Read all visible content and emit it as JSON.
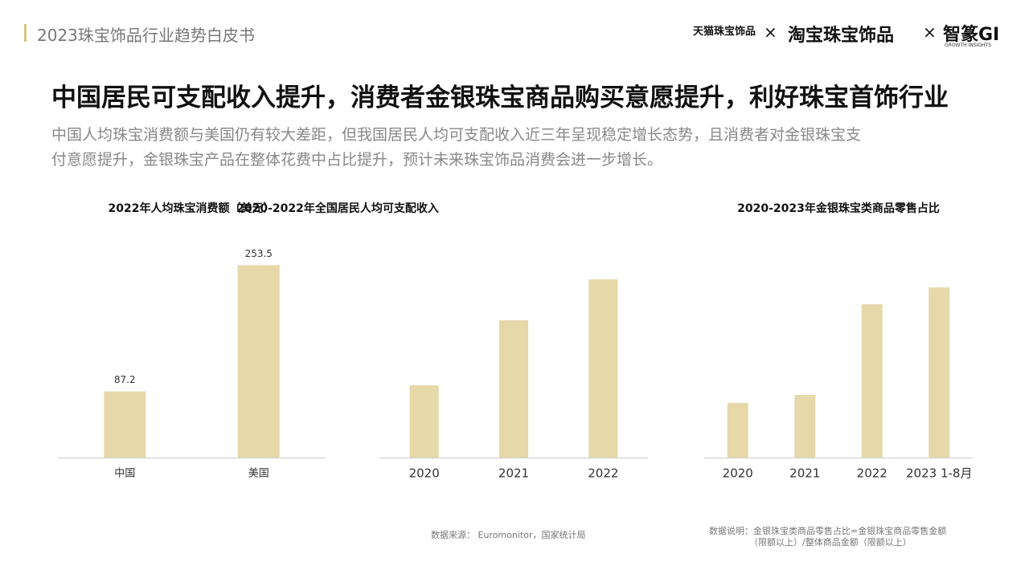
{
  "header": {
    "report": "2023珠宝饰品行业趋势白皮书",
    "logos": [
      "天猫珠宝饰品",
      "×",
      "淘宝珠宝饰品",
      "×",
      "智篆GI"
    ],
    "logo_sub": "GROWTH  INSIGHTS"
  },
  "title": "中国居民可支配收入提升，消费者金银珠宝商品购买意愿提升，利好珠宝首饰行业",
  "subtitle_lines": [
    "中国人均珠宝消费额与美国仍有较大差距，但我国居民人均可支配收入近三年呈现稳定增长态势，且消费者对金银珠宝支",
    "付意愿提升，金银珠宝产品在整体花费中占比提升，预计未来珠宝饰品消费会进一步增长。"
  ],
  "chart_data": [
    {
      "type": "bar",
      "title": "2022年人均珠宝消费额（美元）",
      "categories": [
        "中国",
        "美国"
      ],
      "values": [
        87.2,
        253.5
      ],
      "color": "#e6d8a8",
      "ylim": [
        0,
        275
      ],
      "show_values": true
    },
    {
      "type": "bar",
      "title": "2020-2022年全国居民人均可支配收入",
      "categories": [
        "2020",
        "2021",
        "2022"
      ],
      "values": [
        90,
        171,
        222
      ],
      "color": "#e6d8a8",
      "ylim": [
        0,
        260
      ],
      "show_values": false
    },
    {
      "type": "bar",
      "title": "2020-2023年金银珠宝类商品零售占比",
      "categories": [
        "2020",
        "2021",
        "2022",
        "2023 1-8月"
      ],
      "values": [
        68,
        78,
        191,
        212
      ],
      "color": "#e6d8a8",
      "ylim": [
        0,
        260
      ],
      "show_values": false
    }
  ],
  "source": "数据来源： Euromonitor，国家统计局",
  "note_lines": [
    "数据说明：金银珠宝类商品零售占比=金银珠宝商品零售金额",
    "（限额以上）/整体商品金额（限额以上）"
  ]
}
